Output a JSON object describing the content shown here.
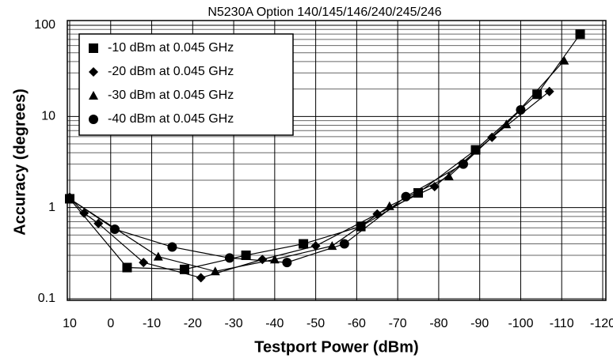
{
  "chart_data": {
    "type": "line",
    "title": "N5230A Option 140/145/146/240/245/246",
    "xlabel": "Testport Power (dBm)",
    "ylabel": "Accuracy (degrees)",
    "xlim": [
      10,
      -120
    ],
    "xticks": [
      10,
      0,
      -10,
      -20,
      -30,
      -40,
      -50,
      -60,
      -70,
      -80,
      -90,
      -100,
      -110,
      -120
    ],
    "ylim": [
      0.1,
      100
    ],
    "yticks": [
      0.1,
      1,
      10,
      100
    ],
    "log_y": true,
    "grid": true,
    "legend": "upper left",
    "series": [
      {
        "name": "-10 dBm at 0.045 GHz",
        "color": "#000000",
        "marker": "square",
        "x": [
          10,
          -4,
          -18,
          -33,
          -47,
          -61,
          -75,
          -89,
          -104,
          -114.5
        ],
        "values": [
          1.25,
          0.22,
          0.21,
          0.3,
          0.4,
          0.62,
          1.45,
          4.3,
          17.5,
          80
        ]
      },
      {
        "name": "-20 dBm at 0.045 GHz",
        "color": "#000000",
        "marker": "diamond",
        "x": [
          10,
          6.5,
          3,
          -8,
          -22,
          -37,
          -50,
          -65,
          -79,
          -93,
          -107
        ],
        "values": [
          1.3,
          0.87,
          0.67,
          0.25,
          0.17,
          0.27,
          0.38,
          0.85,
          1.7,
          5.9,
          18.8
        ]
      },
      {
        "name": "-30 dBm at 0.045 GHz",
        "color": "#000000",
        "marker": "triangle",
        "x": [
          10,
          -11.6,
          -25.5,
          -40,
          -54,
          -68,
          -82.5,
          -96.5,
          -110.6
        ],
        "values": [
          1.25,
          0.29,
          0.2,
          0.27,
          0.38,
          1.04,
          2.2,
          8.2,
          41
        ]
      },
      {
        "name": "-40 dBm at 0.045 GHz",
        "color": "#000000",
        "marker": "circle",
        "x": [
          10,
          -1,
          -15,
          -29,
          -43,
          -57,
          -72,
          -86,
          -100
        ],
        "values": [
          1.25,
          0.58,
          0.37,
          0.28,
          0.25,
          0.4,
          1.32,
          3.0,
          11.8
        ]
      }
    ]
  }
}
